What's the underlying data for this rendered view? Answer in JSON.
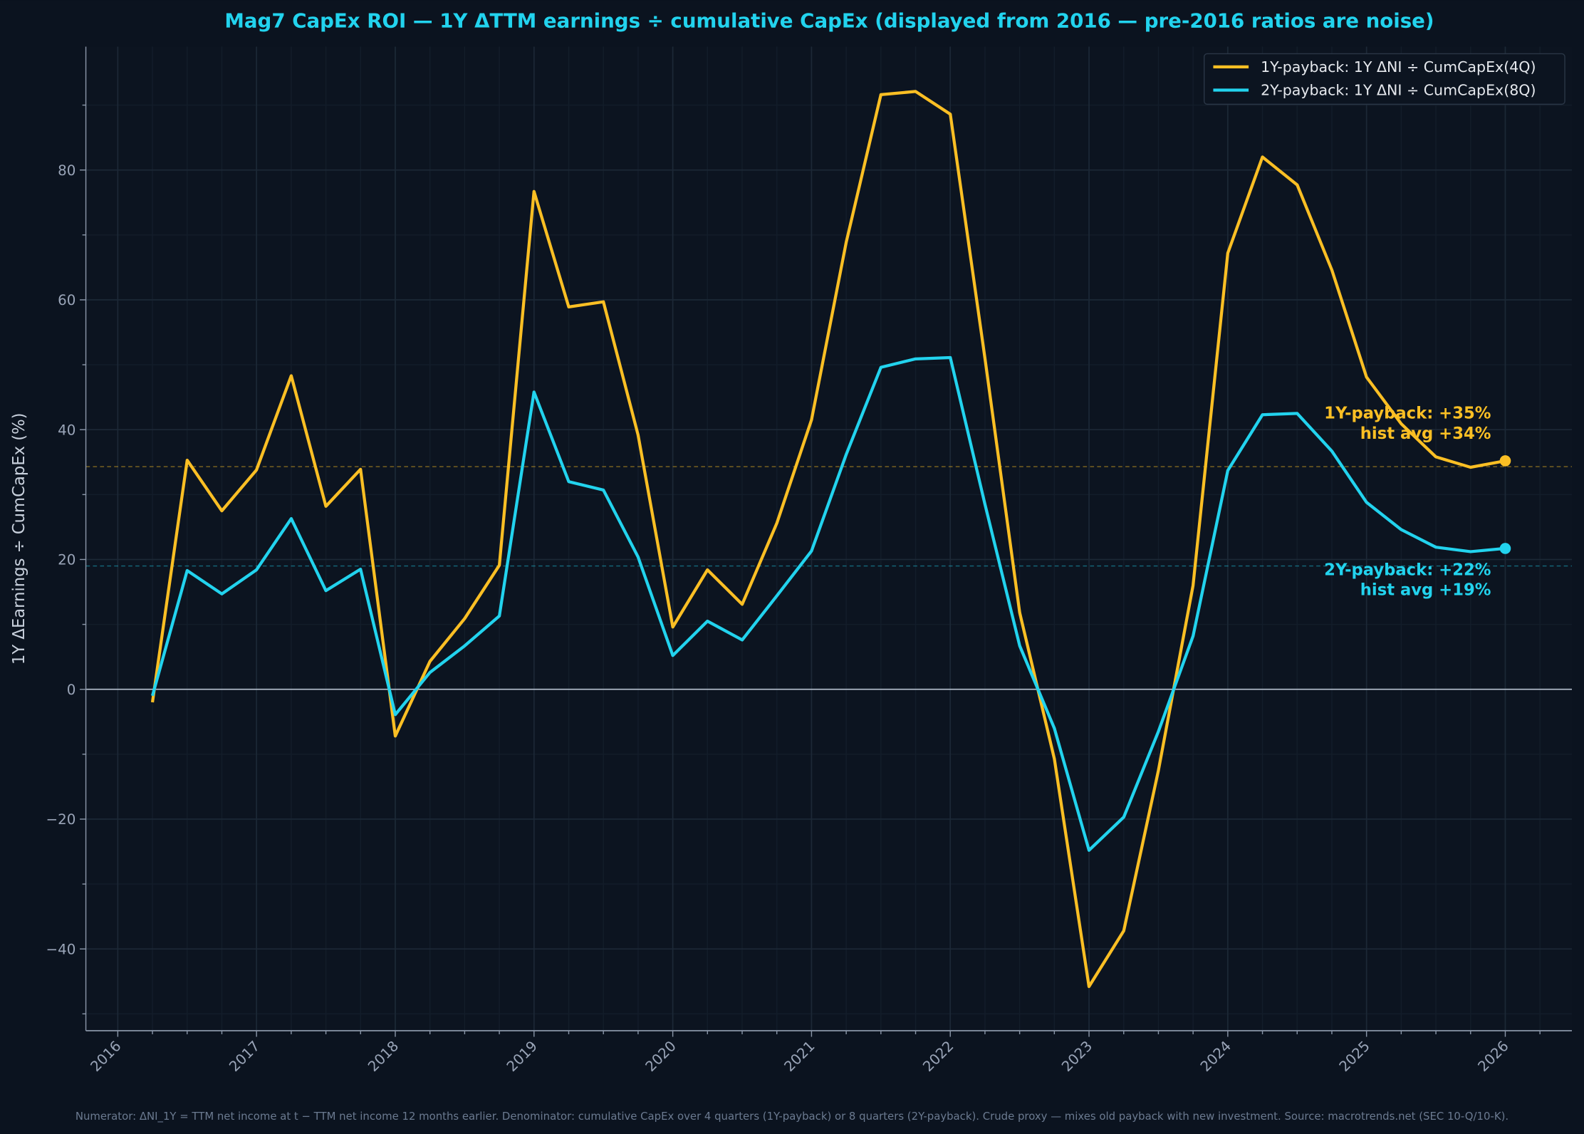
{
  "chart_data": {
    "type": "line",
    "title": "Mag7 CapEx ROI — 1Y ΔTTM earnings ÷ cumulative CapEx  (displayed from 2016 — pre-2016 ratios are noise)",
    "xlabel": "",
    "ylabel": "1Y ΔEarnings ÷ CumCapEx  (%)",
    "xlim": [
      2015.77,
      2026.48
    ],
    "ylim": [
      -52.6,
      99
    ],
    "x_ticks": [
      2016,
      2017,
      2018,
      2019,
      2020,
      2021,
      2022,
      2023,
      2024,
      2025,
      2026
    ],
    "x_tick_labels": [
      "2016",
      "2017",
      "2018",
      "2019",
      "2020",
      "2021",
      "2022",
      "2023",
      "2024",
      "2025",
      "2026"
    ],
    "y_ticks": [
      -40,
      -20,
      0,
      20,
      40,
      60,
      80
    ],
    "y_tick_labels": [
      "−40",
      "−20",
      "0",
      "20",
      "40",
      "60",
      "80"
    ],
    "grid": true,
    "legend_position": "top-right",
    "x": [
      2016.25,
      2016.5,
      2016.75,
      2017.0,
      2017.25,
      2017.5,
      2017.75,
      2018.0,
      2018.25,
      2018.5,
      2018.75,
      2019.0,
      2019.25,
      2019.5,
      2019.75,
      2020.0,
      2020.25,
      2020.5,
      2020.75,
      2021.0,
      2021.25,
      2021.5,
      2021.75,
      2022.0,
      2022.25,
      2022.5,
      2022.75,
      2023.0,
      2023.25,
      2023.5,
      2023.75,
      2024.0,
      2024.25,
      2024.5,
      2024.75,
      2025.0,
      2025.25,
      2025.5,
      2025.75,
      2026.0
    ],
    "series": [
      {
        "name": "1Y-payback: 1Y ΔNI ÷ CumCapEx(4Q)",
        "color": "#fbbf24",
        "values": [
          -2,
          35.3,
          27.5,
          33.8,
          48.3,
          28.2,
          33.9,
          -7.2,
          4.3,
          10.9,
          19.1,
          76.7,
          58.9,
          59.7,
          39.2,
          9.6,
          18.4,
          13.1,
          25.6,
          41.5,
          68.9,
          91.6,
          92.1,
          88.6,
          51,
          11.8,
          -10.7,
          -45.8,
          -37.2,
          -12.5,
          16,
          67.2,
          82,
          77.7,
          64.6,
          48.1,
          40.9,
          35.8,
          34.2,
          35.2
        ],
        "hist_avg": 34.3,
        "annotation": [
          "1Y-payback: +35%",
          "hist avg +34%"
        ]
      },
      {
        "name": "2Y-payback: 1Y ΔNI ÷ CumCapEx(8Q)",
        "color": "#22d3ee",
        "values": [
          -1,
          18.3,
          14.7,
          18.4,
          26.3,
          15.2,
          18.5,
          -3.9,
          2.6,
          6.7,
          11.3,
          45.8,
          32.0,
          30.7,
          20.4,
          5.2,
          10.5,
          7.6,
          14.4,
          21.3,
          36.2,
          49.6,
          50.9,
          51.1,
          28.5,
          6.7,
          -6,
          -24.8,
          -19.7,
          -6.5,
          8.2,
          33.7,
          42.3,
          42.5,
          36.7,
          28.8,
          24.6,
          21.9,
          21.2,
          21.7
        ],
        "hist_avg": 19.0,
        "annotation": [
          "2Y-payback: +22%",
          "hist avg +19%"
        ]
      }
    ]
  },
  "footer": "Numerator: ΔNI_1Y = TTM net income at t − TTM net income 12 months earlier. Denominator: cumulative CapEx over 4 quarters (1Y-payback) or 8 quarters (2Y-payback). Crude proxy — mixes old payback with new investment. Source: macrotrends.net (SEC 10-Q/10-K).",
  "colors": {
    "background": "#0b131f",
    "plot_background": "#0c1420",
    "grid": "#1c2836",
    "axis": "#8a96a8"
  }
}
